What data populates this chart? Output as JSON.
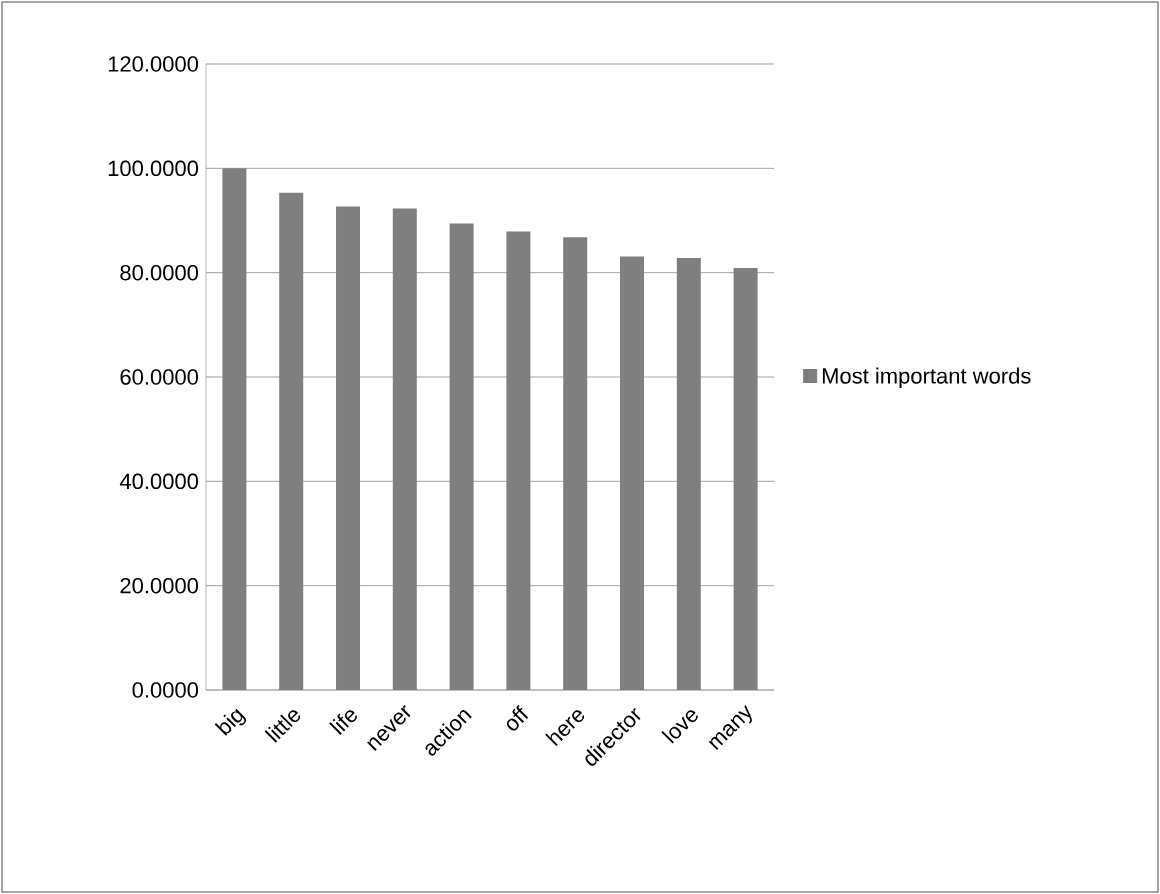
{
  "chart_data": {
    "type": "bar",
    "categories": [
      "big",
      "little",
      "life",
      "never",
      "action",
      "off",
      "here",
      "director",
      "love",
      "many"
    ],
    "series": [
      {
        "name": "Most important words",
        "color": "#7f7f7f",
        "values": [
          100.0,
          95.3,
          92.7,
          92.3,
          89.4,
          87.9,
          86.8,
          83.1,
          82.8,
          80.9
        ]
      }
    ],
    "ylim": [
      0,
      120
    ],
    "yticks": [
      {
        "value": 0,
        "label": "0.0000"
      },
      {
        "value": 20,
        "label": "20.0000"
      },
      {
        "value": 40,
        "label": "40.0000"
      },
      {
        "value": 60,
        "label": "60.0000"
      },
      {
        "value": 80,
        "label": "80.0000"
      },
      {
        "value": 100,
        "label": "100.0000"
      },
      {
        "value": 120,
        "label": "120.0000"
      }
    ],
    "grid": "y",
    "legend": "right"
  }
}
